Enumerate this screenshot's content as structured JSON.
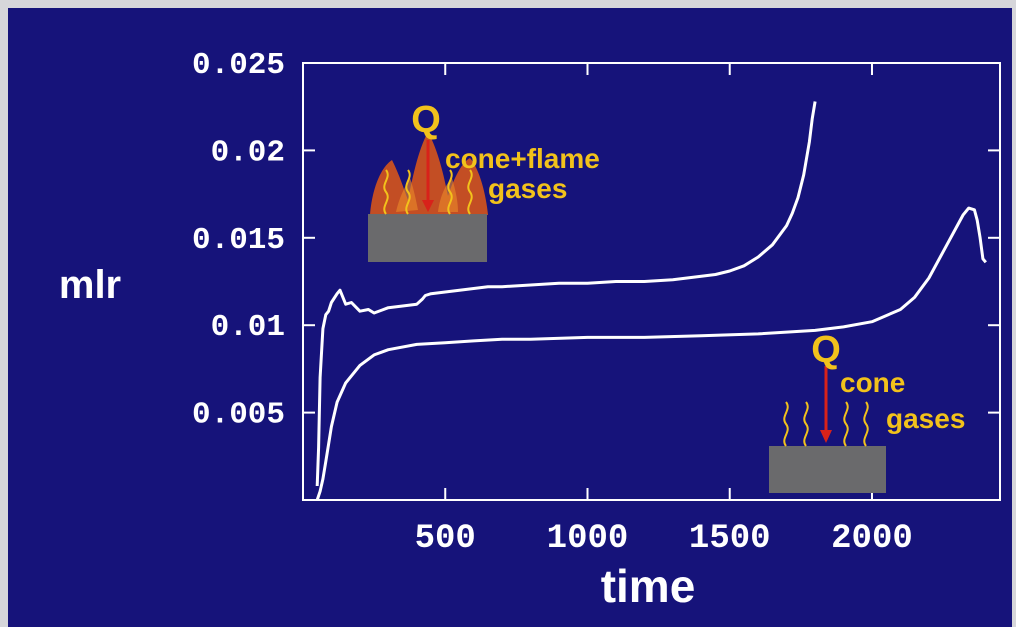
{
  "chart_data": {
    "type": "line",
    "title": "",
    "xlabel": "time",
    "ylabel": "mlr",
    "xlim": [
      0,
      2450
    ],
    "ylim": [
      0,
      0.025
    ],
    "x_ticks": [
      500,
      1000,
      1500,
      2000
    ],
    "y_ticks": [
      0.005,
      0.01,
      0.015,
      0.02,
      0.025
    ],
    "x_tick_labels": [
      "500",
      "1000",
      "1500",
      "2000"
    ],
    "y_tick_labels": [
      "0.005",
      "0.01",
      "0.015",
      "0.02",
      "0.025"
    ],
    "grid": false,
    "line_color": "#ffffff",
    "series": [
      {
        "x": [
          50,
          55,
          60,
          70,
          80,
          90,
          100,
          120,
          130,
          150,
          170,
          200,
          230,
          250,
          300,
          350,
          400,
          420,
          430,
          450,
          500,
          550,
          600,
          650,
          700,
          800,
          900,
          1000,
          1100,
          1200,
          1300,
          1350,
          1400,
          1450,
          1500,
          1550,
          1600,
          1650,
          1700,
          1720,
          1740,
          1760,
          1780,
          1790,
          1800
        ],
        "y": [
          0.0008,
          0.003,
          0.007,
          0.0098,
          0.0106,
          0.0108,
          0.0113,
          0.0118,
          0.012,
          0.0112,
          0.0113,
          0.0108,
          0.0109,
          0.0107,
          0.011,
          0.0111,
          0.0112,
          0.0115,
          0.0117,
          0.0118,
          0.0119,
          0.012,
          0.0121,
          0.0122,
          0.0122,
          0.0123,
          0.0124,
          0.0124,
          0.0125,
          0.0125,
          0.0126,
          0.0127,
          0.0128,
          0.0129,
          0.0131,
          0.0134,
          0.0139,
          0.0146,
          0.0157,
          0.0164,
          0.0173,
          0.0186,
          0.0205,
          0.0218,
          0.0228
        ]
      },
      {
        "x": [
          50,
          60,
          70,
          80,
          90,
          100,
          120,
          150,
          200,
          250,
          300,
          400,
          500,
          600,
          700,
          800,
          1000,
          1200,
          1400,
          1600,
          1800,
          1900,
          2000,
          2100,
          2150,
          2200,
          2250,
          2300,
          2320,
          2340,
          2360,
          2370,
          2380,
          2390,
          2400
        ],
        "y": [
          0.0,
          0.0005,
          0.0012,
          0.0022,
          0.0032,
          0.0042,
          0.0056,
          0.0067,
          0.0077,
          0.0083,
          0.0086,
          0.0089,
          0.009,
          0.0091,
          0.0092,
          0.0092,
          0.0093,
          0.0093,
          0.0094,
          0.0095,
          0.0097,
          0.0099,
          0.0102,
          0.0109,
          0.0116,
          0.0127,
          0.0142,
          0.0157,
          0.0163,
          0.0167,
          0.0166,
          0.016,
          0.015,
          0.0138,
          0.0136
        ]
      }
    ]
  },
  "insets": {
    "flame": {
      "q_label": "Q",
      "label_line1": "cone+flame",
      "label_line2": "gases"
    },
    "cone": {
      "q_label": "Q",
      "label_line1": "cone",
      "label_line2": "gases"
    }
  }
}
